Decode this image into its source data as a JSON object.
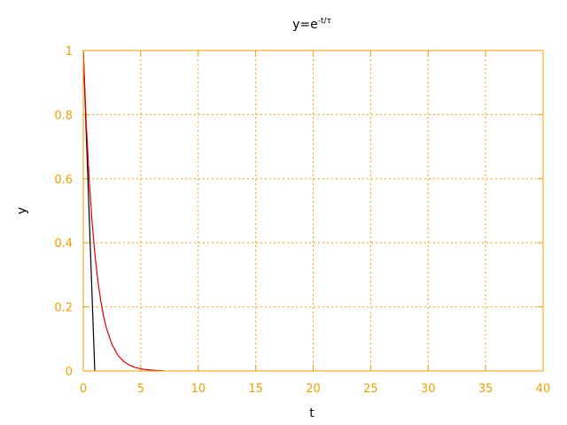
{
  "colors": {
    "axis": "#f0a000",
    "grid": "#f0a000",
    "background": "#ffffff",
    "tangent_line": "#000000",
    "exp_curve": "#dd0000"
  },
  "chart_data": {
    "type": "line",
    "title": {
      "base": "y=e",
      "superscript": "-t/τ"
    },
    "xlabel": "t",
    "ylabel": "y",
    "xlim": [
      0,
      40
    ],
    "ylim": [
      0,
      1
    ],
    "grid": true,
    "x_ticks": [
      0,
      5,
      10,
      15,
      20,
      25,
      30,
      35,
      40
    ],
    "y_ticks": [
      0,
      0.2,
      0.4,
      0.6,
      0.8,
      1
    ],
    "x_tick_labels": [
      "0",
      "5",
      "10",
      "15",
      "20",
      "25",
      "30",
      "35",
      "40"
    ],
    "y_tick_labels": [
      "0",
      "0.2",
      "0.4",
      "0.6",
      "0.8",
      "1"
    ],
    "series": [
      {
        "type": "line",
        "x": [
          0,
          0.1,
          0.2,
          0.3,
          0.4,
          0.5,
          0.6,
          0.7,
          0.8,
          0.9,
          1.0
        ],
        "y": [
          1.0,
          0.9,
          0.8,
          0.7,
          0.6,
          0.5,
          0.4,
          0.3,
          0.2,
          0.1,
          0.0
        ],
        "color": "#000000"
      },
      {
        "type": "line",
        "x": [
          0,
          0.25,
          0.5,
          0.75,
          1.0,
          1.25,
          1.5,
          1.75,
          2.0,
          2.5,
          3.0,
          3.5,
          4.0,
          4.5,
          5.0,
          5.5,
          6.0,
          6.5,
          7.0
        ],
        "y": [
          1.0,
          0.7788,
          0.6065,
          0.4724,
          0.3679,
          0.2865,
          0.2231,
          0.1738,
          0.1353,
          0.0821,
          0.0498,
          0.0302,
          0.0183,
          0.0111,
          0.0067,
          0.0041,
          0.0025,
          0.0015,
          0.0009
        ],
        "color": "#dd0000"
      }
    ]
  }
}
